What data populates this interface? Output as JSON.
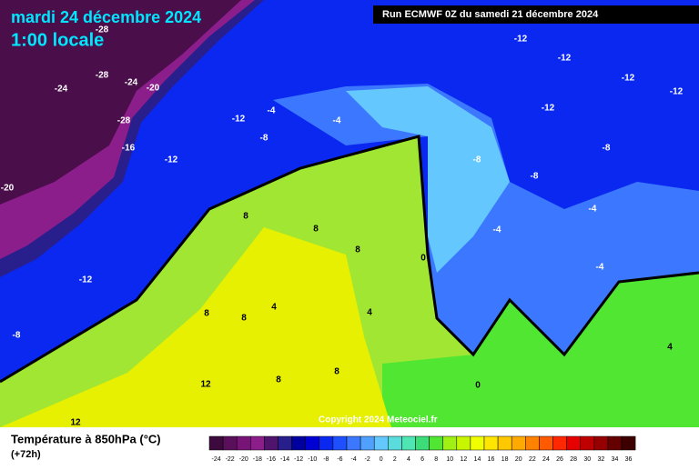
{
  "header": {
    "date": "mardi 24 décembre 2024",
    "time": "1:00 locale",
    "run": "Run ECMWF 0Z du samedi 21 décembre 2024"
  },
  "copyright": "Copyright 2024 Meteociel.fr",
  "legend": {
    "title": "Température à 850hPa (°C)",
    "lead": "(+72h)",
    "ticks": [
      -24,
      -22,
      -20,
      -18,
      -16,
      -14,
      -12,
      -10,
      -8,
      -6,
      -4,
      -2,
      0,
      2,
      4,
      6,
      8,
      10,
      12,
      14,
      16,
      18,
      20,
      22,
      24,
      26,
      28,
      30,
      32,
      34,
      36
    ],
    "colors": [
      "#3c0a3c",
      "#5a0f5a",
      "#781478",
      "#8c1e8c",
      "#50146e",
      "#281e8c",
      "#0000a0",
      "#0000d2",
      "#0a28f0",
      "#1e50ff",
      "#3c78ff",
      "#50a0ff",
      "#64c8ff",
      "#5adcdc",
      "#50e6b4",
      "#3cdc78",
      "#50e632",
      "#a0f014",
      "#c8f500",
      "#f0ff00",
      "#ffe600",
      "#ffc800",
      "#ffaa00",
      "#ff8200",
      "#ff5a00",
      "#ff2800",
      "#e60000",
      "#be0000",
      "#960000",
      "#640000",
      "#3c0000"
    ]
  },
  "contour_labels": [
    -28,
    -28,
    -24,
    -24,
    -20,
    -28,
    -16,
    -12,
    -20,
    -12,
    -8,
    -12,
    -4,
    -8,
    -4,
    -12,
    -12,
    -12,
    -12,
    -12,
    -8,
    -8,
    -8,
    -4,
    -4,
    -4,
    8,
    8,
    8,
    0,
    4,
    8,
    8,
    4,
    12,
    8,
    8,
    0,
    4,
    12
  ]
}
